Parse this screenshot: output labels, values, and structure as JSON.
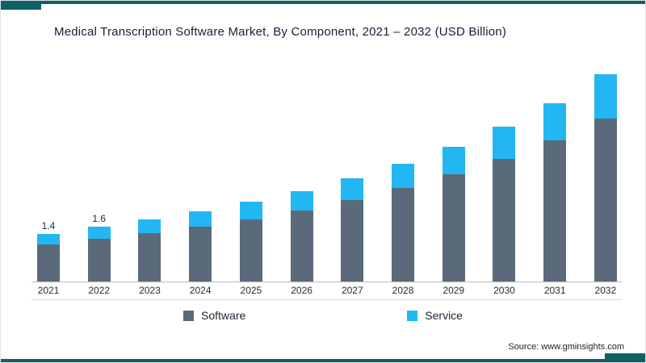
{
  "title": "Medical Transcription Software Market, By Component, 2021 – 2032 (USD Billion)",
  "source": "Source: www.gminsights.com",
  "legend": {
    "software": "Software",
    "service": "Service"
  },
  "colors": {
    "software": "#5a6a7a",
    "service": "#22b7f2",
    "frame": "#0e5f66",
    "axis": "#bdbdbd",
    "text": "#1c2533"
  },
  "chart_data": {
    "type": "bar",
    "stacked": true,
    "title": "Medical Transcription Software Market, By Component, 2021 – 2032 (USD Billion)",
    "unit": "USD Billion",
    "categories": [
      2021,
      2022,
      2023,
      2024,
      2025,
      2026,
      2027,
      2028,
      2029,
      2030,
      2031,
      2032
    ],
    "series": [
      {
        "name": "Software",
        "values": [
          1.08,
          1.25,
          1.42,
          1.6,
          1.82,
          2.08,
          2.38,
          2.72,
          3.12,
          3.58,
          4.12,
          4.76
        ]
      },
      {
        "name": "Service",
        "values": [
          0.32,
          0.35,
          0.4,
          0.45,
          0.5,
          0.56,
          0.63,
          0.71,
          0.82,
          0.94,
          1.08,
          1.28
        ]
      }
    ],
    "totals": [
      1.4,
      1.6,
      1.82,
      2.05,
      2.32,
      2.64,
      3.01,
      3.43,
      3.94,
      4.52,
      5.2,
      6.04
    ],
    "data_labels": {
      "2021": "1.4",
      "2022": "1.6"
    },
    "legend_position": "bottom",
    "grid": false,
    "xlabel": "",
    "ylabel": ""
  }
}
